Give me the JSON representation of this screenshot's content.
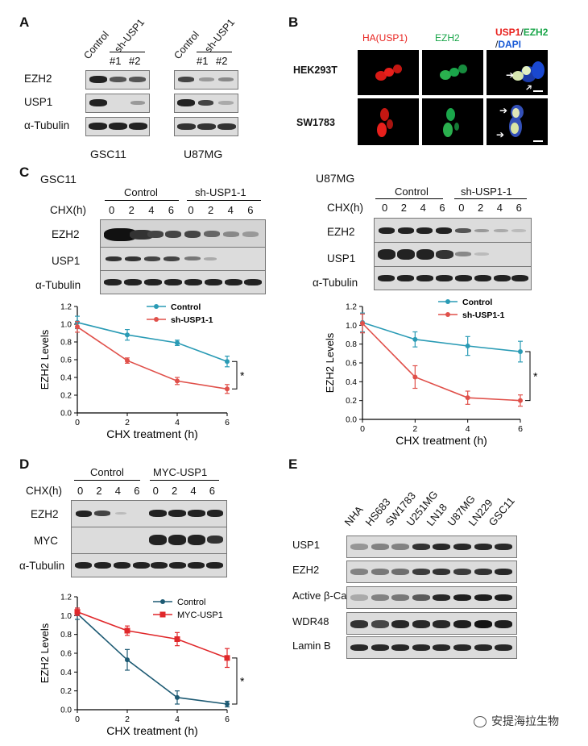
{
  "panels": {
    "A": "A",
    "B": "B",
    "C": "C",
    "D": "D",
    "E": "E"
  },
  "panelA": {
    "left": {
      "cols": [
        "Control",
        "sh-USP1"
      ],
      "subcols": [
        "#1",
        "#2"
      ],
      "caption": "GSC11"
    },
    "right": {
      "cols": [
        "Control",
        "sh-USP1"
      ],
      "subcols": [
        "#1",
        "#2"
      ],
      "caption": "U87MG"
    },
    "rows": [
      "EZH2",
      "USP1",
      "α-Tubulin"
    ]
  },
  "panelB": {
    "headers": {
      "ha": "HA(USP1)",
      "ezh2": "EZH2",
      "usp1": "USP1",
      "slash1": "/",
      "ezh2b": "EZH2",
      "slash2": "/",
      "dapi": "DAPI"
    },
    "rows": [
      "HEK293T",
      "SW1783"
    ],
    "colors": {
      "red": "#e8201c",
      "green": "#1aa64a",
      "blue": "#1a5bd6"
    }
  },
  "panelC": {
    "left": {
      "cell": "GSC11",
      "group1": "Control",
      "group2": "sh-USP1-1",
      "chx_label": "CHX(h)",
      "times": [
        "0",
        "2",
        "4",
        "6",
        "0",
        "2",
        "4",
        "6"
      ],
      "rows": [
        "EZH2",
        "USP1",
        "α-Tubulin"
      ]
    },
    "right": {
      "cell": "U87MG",
      "group1": "Control",
      "group2": "sh-USP1-1",
      "chx_label": "CHX(h)",
      "times": [
        "0",
        "2",
        "4",
        "6",
        "0",
        "2",
        "4",
        "6"
      ],
      "rows": [
        "EZH2",
        "USP1",
        "α-Tubulin"
      ]
    }
  },
  "panelD": {
    "group1": "Control",
    "group2": "MYC-USP1",
    "chx_label": "CHX(h)",
    "times": [
      "0",
      "2",
      "4",
      "6",
      "0",
      "2",
      "4",
      "6"
    ],
    "rows": [
      "EZH2",
      "MYC",
      "α-Tubulin"
    ]
  },
  "panelE": {
    "lanes": [
      "NHA",
      "HS683",
      "SW1783",
      "U251MG",
      "LN18",
      "U87MG",
      "LN229",
      "GSC11"
    ],
    "rows": [
      "USP1",
      "EZH2",
      "Active β-Cat",
      "WDR48",
      "Lamin B"
    ]
  },
  "watermark": "安提海拉生物",
  "chart_data": [
    {
      "type": "line",
      "id": "C-left",
      "xlabel": "CHX treatment (h)",
      "ylabel": "EZH2 Levels",
      "xlim": [
        0,
        6
      ],
      "ylim": [
        0,
        1.2
      ],
      "xticks": [
        "0",
        "2",
        "4",
        "6"
      ],
      "yticks": [
        "0.0",
        "0.2",
        "0.4",
        "0.6",
        "0.8",
        "1.0",
        "1.2"
      ],
      "significance": "*",
      "x": [
        0,
        2,
        4,
        6
      ],
      "series": [
        {
          "name": "Control",
          "color": "#2a9bb5",
          "values": [
            1.02,
            0.88,
            0.79,
            0.58
          ],
          "err": [
            0.07,
            0.06,
            0.03,
            0.06
          ]
        },
        {
          "name": "sh-USP1-1",
          "color": "#e0504a",
          "values": [
            0.97,
            0.59,
            0.36,
            0.27
          ],
          "err": [
            0.06,
            0.03,
            0.04,
            0.05
          ]
        }
      ]
    },
    {
      "type": "line",
      "id": "C-right",
      "xlabel": "CHX treatment (h)",
      "ylabel": "EZH2 Levels",
      "xlim": [
        0,
        6
      ],
      "ylim": [
        0,
        1.2
      ],
      "xticks": [
        "0",
        "2",
        "4",
        "6"
      ],
      "yticks": [
        "0.0",
        "0.2",
        "0.4",
        "0.6",
        "0.8",
        "1.0",
        "1.2"
      ],
      "significance": "*",
      "x": [
        0,
        2,
        4,
        6
      ],
      "series": [
        {
          "name": "Control",
          "color": "#2a9bb5",
          "values": [
            1.03,
            0.85,
            0.78,
            0.72
          ],
          "err": [
            0.1,
            0.08,
            0.1,
            0.11
          ]
        },
        {
          "name": "sh-USP1-1",
          "color": "#e0504a",
          "values": [
            1.02,
            0.45,
            0.23,
            0.2
          ],
          "err": [
            0.1,
            0.12,
            0.07,
            0.06
          ]
        }
      ]
    },
    {
      "type": "line",
      "id": "D",
      "xlabel": "CHX treatment (h)",
      "ylabel": "EZH2 Levels",
      "xlim": [
        0,
        6
      ],
      "ylim": [
        0,
        1.2
      ],
      "xticks": [
        "0",
        "2",
        "4",
        "6"
      ],
      "yticks": [
        "0.0",
        "0.2",
        "0.4",
        "0.6",
        "0.8",
        "1.0",
        "1.2"
      ],
      "significance": "*",
      "x": [
        0,
        2,
        4,
        6
      ],
      "series": [
        {
          "name": "Control",
          "color": "#1d5a73",
          "values": [
            1.02,
            0.53,
            0.13,
            0.06
          ],
          "err": [
            0.06,
            0.11,
            0.07,
            0.03
          ]
        },
        {
          "name": "MYC-USP1",
          "color": "#e0272a",
          "values": [
            1.04,
            0.84,
            0.75,
            0.55
          ],
          "err": [
            0.04,
            0.05,
            0.07,
            0.1
          ]
        }
      ]
    }
  ]
}
